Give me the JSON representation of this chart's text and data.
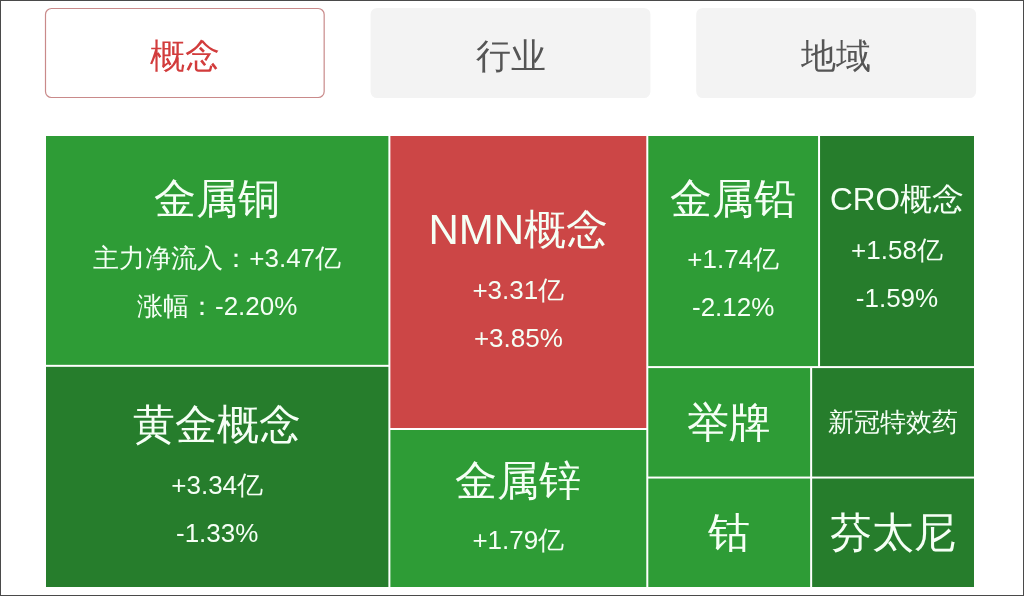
{
  "chart_data": {
    "type": "other",
    "annotations": [
      "概念",
      "行业",
      "地域"
    ],
    "categories": [
      "金属铜",
      "黄金概念",
      "NMN概念",
      "金属锌",
      "金属铅",
      "CRO概念",
      "举牌",
      "新冠特效药",
      "钴",
      "芬太尼"
    ],
    "series": [
      {
        "colors": [
          "#2e9c36",
          "#267d2c",
          "#cc4646",
          "#2e9c36",
          "#2e9c36",
          "#267d2c",
          "#2e9c36",
          "#267d2c",
          "#2e9c36",
          "#267d2c"
        ],
        "values": [
          3.47,
          3.34,
          3.31,
          1.79,
          1.74,
          1.58,
          null,
          null,
          null,
          null
        ],
        "value_labels": [
          "主力净流入：+3.47亿",
          "+3.34亿",
          "+3.31亿",
          "+1.79亿",
          "+1.74亿",
          "+1.58亿",
          null,
          null,
          null,
          null
        ]
      },
      {
        "values": [
          -2.2,
          -1.33,
          3.85,
          null,
          -2.12,
          -1.59,
          null,
          null,
          null,
          null
        ],
        "value_labels": [
          "涨幅：-2.20%",
          "-1.33%",
          "+3.85%",
          null,
          "-2.12%",
          "-1.59%",
          null,
          null,
          null,
          null
        ]
      }
    ]
  }
}
